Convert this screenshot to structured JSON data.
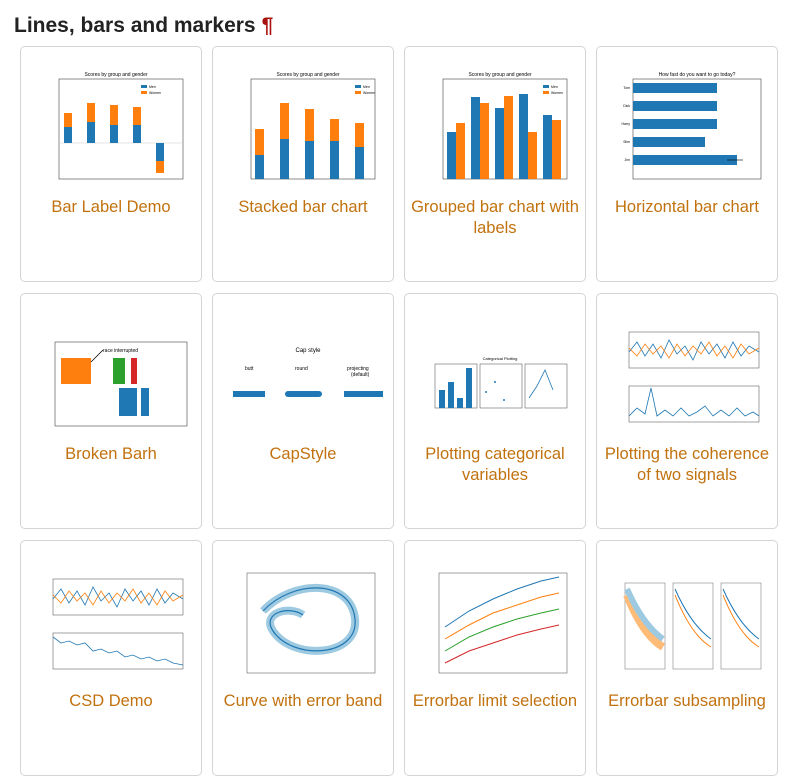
{
  "section": {
    "title": "Lines, bars and markers",
    "anchor": "¶"
  },
  "cards": [
    {
      "label": "Bar Label Demo",
      "thumb": {
        "title": "Scores by group and gender",
        "legend": [
          "Men",
          "Women"
        ]
      }
    },
    {
      "label": "Stacked bar chart",
      "thumb": {
        "title": "Scores by group and gender",
        "legend": [
          "Men",
          "Women"
        ]
      }
    },
    {
      "label": "Grouped bar chart with labels",
      "thumb": {
        "title": "Scores by group and gender",
        "legend": [
          "Men",
          "Women"
        ]
      }
    },
    {
      "label": "Horizontal bar chart",
      "thumb": {
        "title": "How fast do you want to go today?",
        "people": [
          "Tom",
          "Dick",
          "Harry",
          "Slim",
          "Jim"
        ]
      }
    },
    {
      "label": "Broken Barh",
      "thumb": {
        "annotation": "race interrupted"
      }
    },
    {
      "label": "CapStyle",
      "thumb": {
        "title": "Cap style",
        "styles": [
          "butt",
          "round",
          "projecting",
          "(default)"
        ]
      }
    },
    {
      "label": "Plotting categorical variables",
      "thumb": {
        "title": "Categorical Plotting"
      }
    },
    {
      "label": "Plotting the coherence of two signals",
      "thumb": {}
    },
    {
      "label": "CSD Demo",
      "thumb": {}
    },
    {
      "label": "Curve with error band",
      "thumb": {}
    },
    {
      "label": "Errorbar limit selection",
      "thumb": {}
    },
    {
      "label": "Errorbar subsampling",
      "thumb": {}
    }
  ],
  "colors": {
    "accent": "#c1720f",
    "blue": "#1f77b4",
    "orange": "#ff7f0e",
    "green": "#2ca02c",
    "red": "#d62728"
  }
}
